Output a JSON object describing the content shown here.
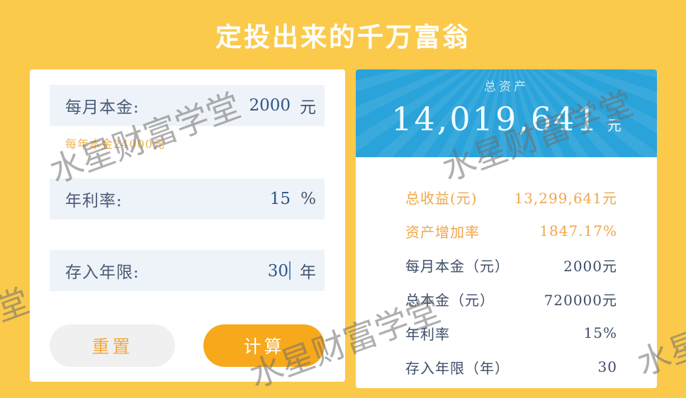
{
  "title": "定投出来的千万富翁",
  "watermark": {
    "text": "水星财富学堂",
    "partial_left": "堂"
  },
  "calculator": {
    "fields": [
      {
        "label": "每月本金:",
        "value": "2000",
        "unit": "元",
        "hint": "每年本金24000元"
      },
      {
        "label": "年利率:",
        "value": "15",
        "unit": "%"
      },
      {
        "label": "存入年限:",
        "value": "30",
        "unit": "年"
      }
    ],
    "reset_label": "重置",
    "calculate_label": "计算"
  },
  "result": {
    "header_label": "总资产",
    "total_assets": "14,019,641",
    "total_assets_unit": "元",
    "rows": [
      {
        "label": "总收益(元)",
        "value": "13,299,641元",
        "highlight": true
      },
      {
        "label": "资产增加率",
        "value": "1847.17%",
        "highlight": true
      },
      {
        "label": "每月本金（元）",
        "value": "2000元",
        "highlight": false
      },
      {
        "label": "总本金（元）",
        "value": "720000元",
        "highlight": false
      },
      {
        "label": "年利率",
        "value": "15%",
        "highlight": false
      },
      {
        "label": "存入年限（年）",
        "value": "30",
        "highlight": false
      }
    ]
  },
  "colors": {
    "background": "#fbca4b",
    "card": "#ffffff",
    "field_row_bg": "#eef3f9",
    "label_navy": "#4a5a77",
    "value_navy": "#2f5684",
    "hint_orange": "#f2b24a",
    "button_orange": "#f7a81b",
    "header_blue": "#29a3da",
    "highlight_orange": "#f0a64a",
    "watermark_gray": "#6e6e6e"
  }
}
